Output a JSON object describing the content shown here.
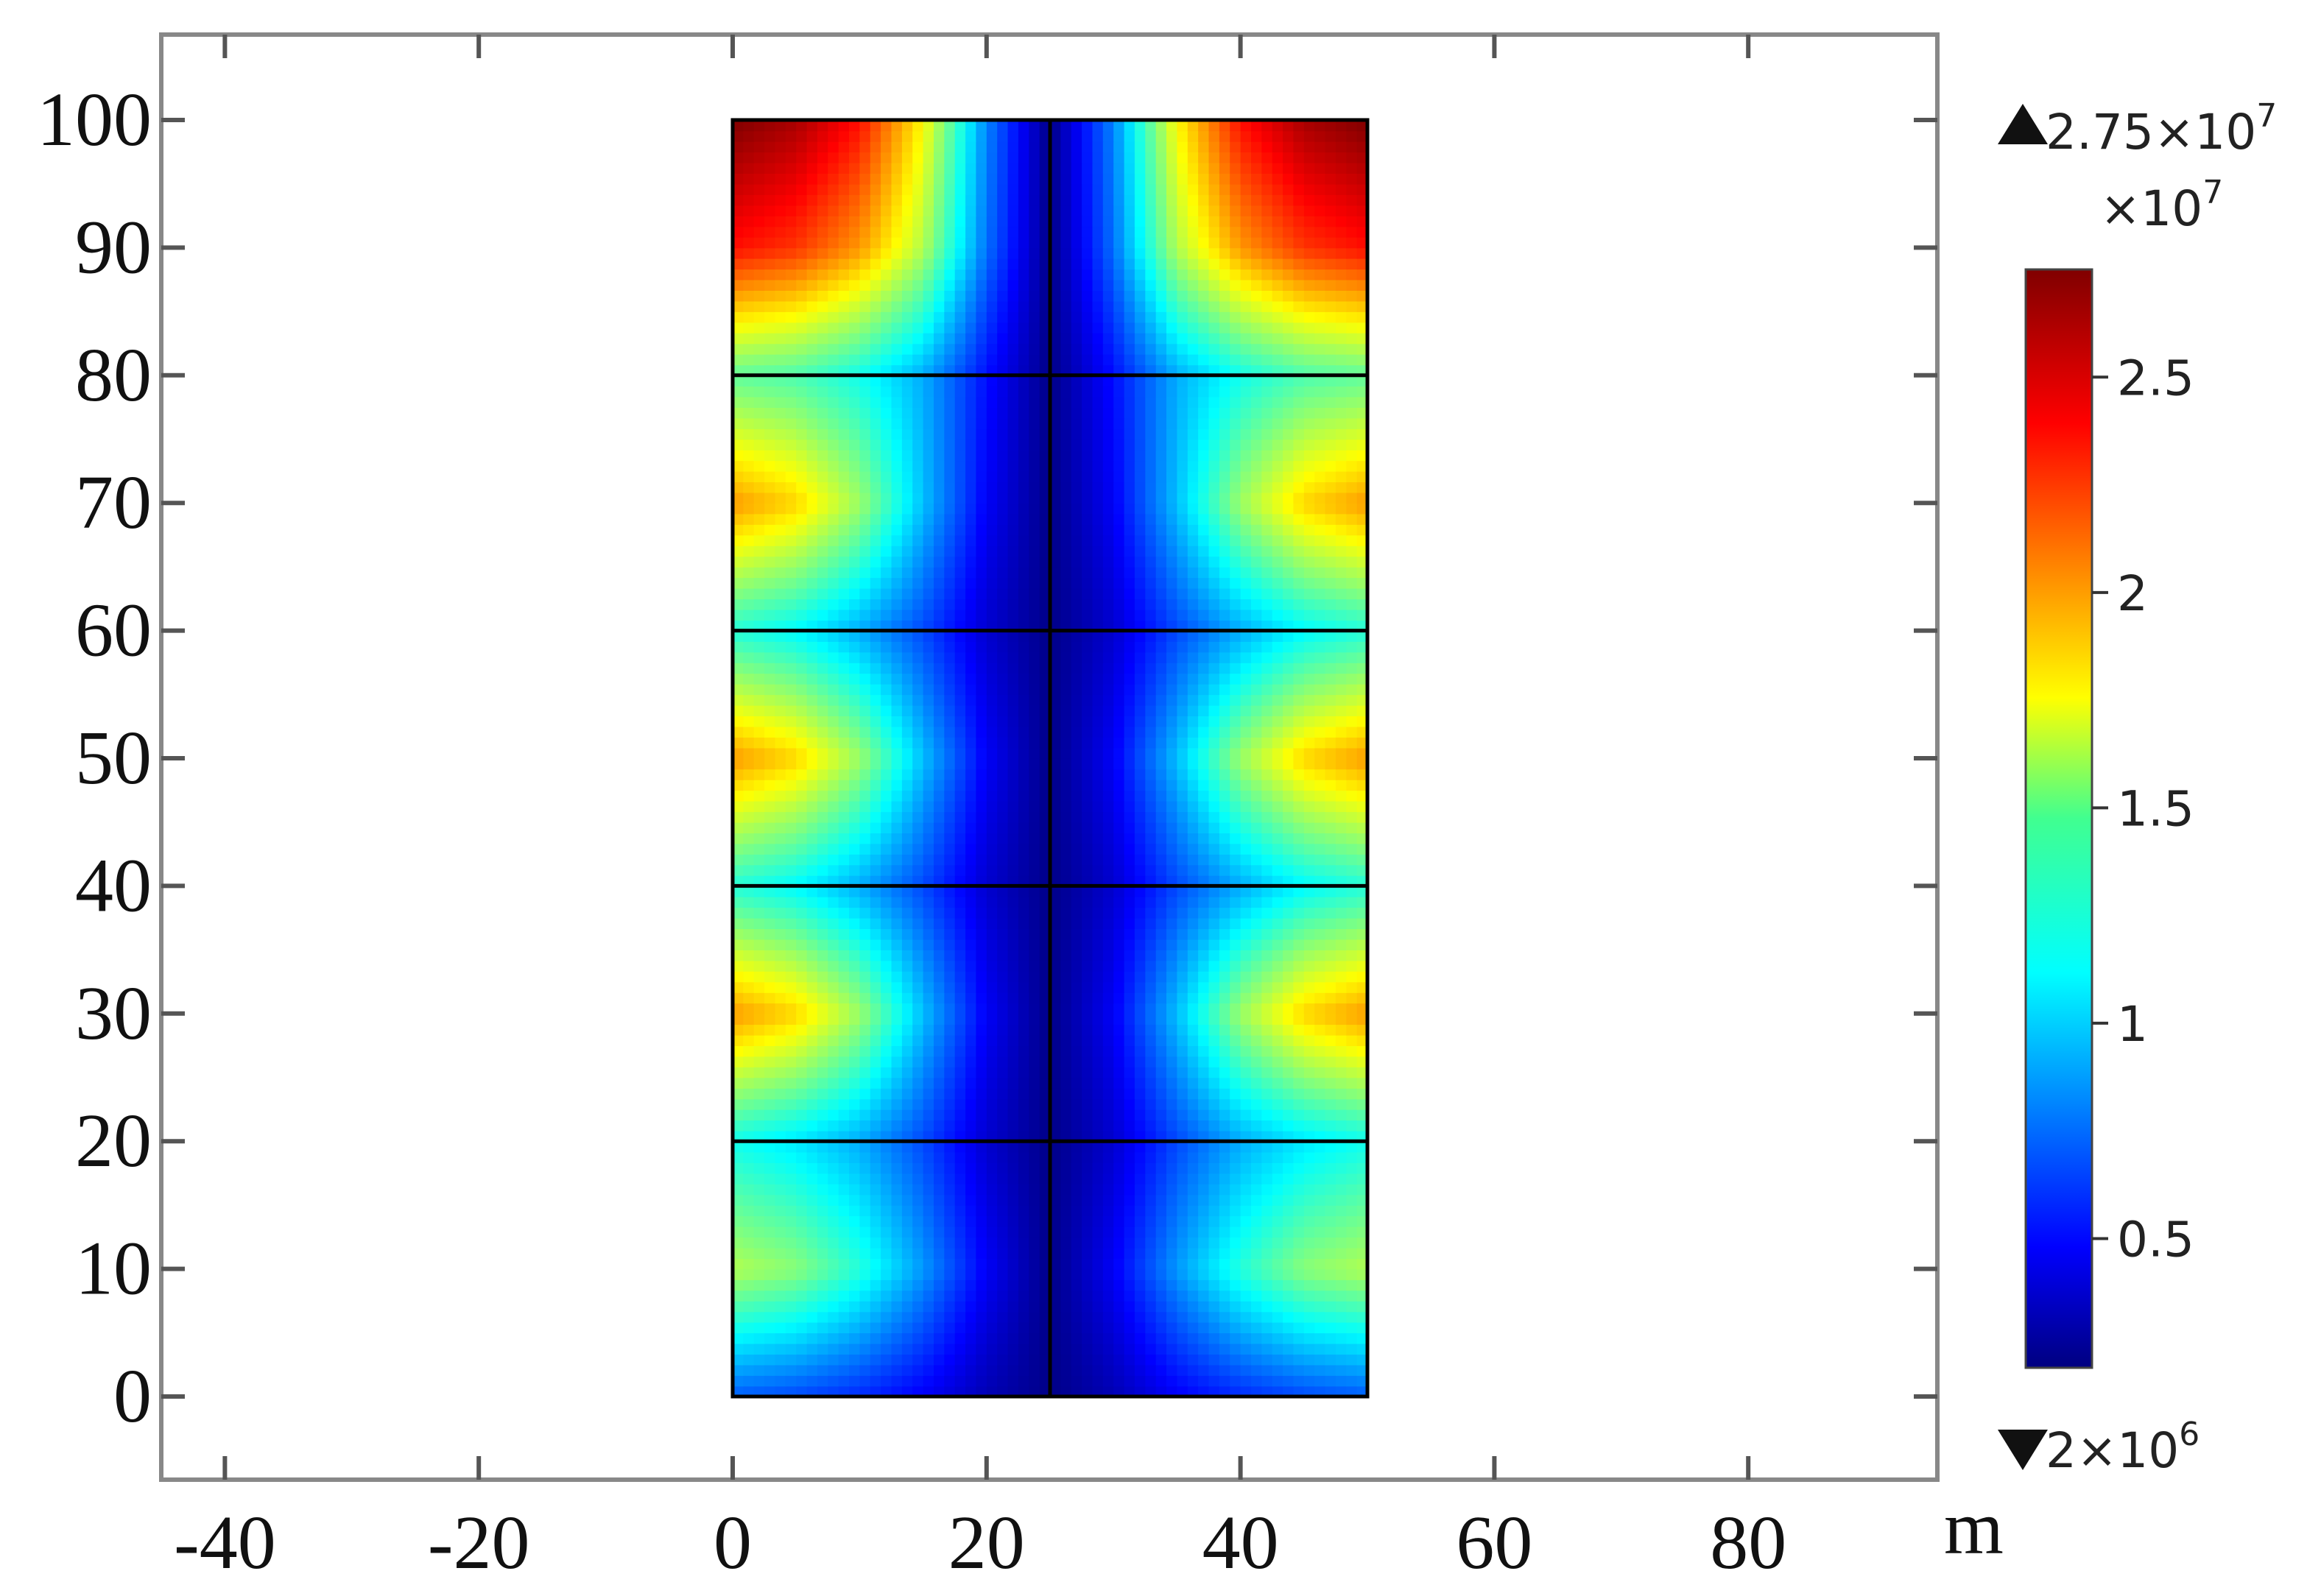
{
  "chart_data": {
    "type": "heatmap",
    "title": "",
    "xlabel": "",
    "ylabel": "",
    "xunit": "m",
    "xlim": [
      -45,
      95
    ],
    "ylim": [
      -6.5,
      106
    ],
    "x_ticks": [
      -40,
      -20,
      0,
      20,
      40,
      60,
      80
    ],
    "y_ticks": [
      0,
      10,
      20,
      30,
      40,
      50,
      60,
      70,
      80,
      90,
      100
    ],
    "x_tick_labels": [
      "-40",
      "-20",
      "0",
      "20",
      "40",
      "60",
      "80"
    ],
    "y_tick_labels": [
      "0",
      "10",
      "20",
      "30",
      "40",
      "50",
      "60",
      "70",
      "80",
      "90",
      "100"
    ],
    "domain": {
      "x": [
        0,
        50
      ],
      "y": [
        0,
        100
      ]
    },
    "divider_x": [
      25
    ],
    "divider_y": [
      20,
      40,
      60,
      80
    ],
    "field": {
      "grid_x": [
        0,
        5,
        10,
        15,
        20,
        25,
        30,
        35,
        40,
        45,
        50
      ],
      "grid_y": [
        0,
        10,
        20,
        30,
        40,
        50,
        60,
        70,
        80,
        90,
        100
      ],
      "values_1e7": [
        [
          0.75,
          0.7,
          0.62,
          0.5,
          0.33,
          0.22,
          0.33,
          0.5,
          0.62,
          0.7,
          0.75
        ],
        [
          1.6,
          1.5,
          1.25,
          0.9,
          0.5,
          0.22,
          0.5,
          0.9,
          1.25,
          1.5,
          1.6
        ],
        [
          1.2,
          1.1,
          0.95,
          0.7,
          0.4,
          0.22,
          0.4,
          0.7,
          0.95,
          1.1,
          1.2
        ],
        [
          2.05,
          1.9,
          1.55,
          1.0,
          0.5,
          0.22,
          0.5,
          1.0,
          1.55,
          1.9,
          2.05
        ],
        [
          1.25,
          1.15,
          0.95,
          0.7,
          0.4,
          0.22,
          0.4,
          0.7,
          0.95,
          1.15,
          1.25
        ],
        [
          2.05,
          1.9,
          1.55,
          1.0,
          0.5,
          0.22,
          0.5,
          1.0,
          1.55,
          1.9,
          2.05
        ],
        [
          1.25,
          1.15,
          0.95,
          0.7,
          0.4,
          0.22,
          0.4,
          0.7,
          0.95,
          1.15,
          1.25
        ],
        [
          2.05,
          1.9,
          1.55,
          1.0,
          0.5,
          0.22,
          0.5,
          1.0,
          1.55,
          1.9,
          2.05
        ],
        [
          1.4,
          1.35,
          1.2,
          0.95,
          0.55,
          0.22,
          0.55,
          0.95,
          1.2,
          1.35,
          1.4
        ],
        [
          2.4,
          2.3,
          2.05,
          1.6,
          0.8,
          0.22,
          0.8,
          1.6,
          2.05,
          2.3,
          2.4
        ],
        [
          2.75,
          2.65,
          2.4,
          1.8,
          0.85,
          0.22,
          0.85,
          1.8,
          2.4,
          2.65,
          2.75
        ]
      ]
    },
    "colorbar": {
      "min": 0.2,
      "max": 2.75,
      "scale_label": "×10",
      "scale_exp": "7",
      "max_label": "2.75×10",
      "max_exp": "7",
      "min_label": "2×10",
      "min_exp": "6",
      "ticks": [
        0.5,
        1,
        1.5,
        2,
        2.5
      ],
      "tick_labels": [
        "0.5",
        "1",
        "1.5",
        "2",
        "2.5"
      ],
      "colormap": "jet"
    }
  }
}
